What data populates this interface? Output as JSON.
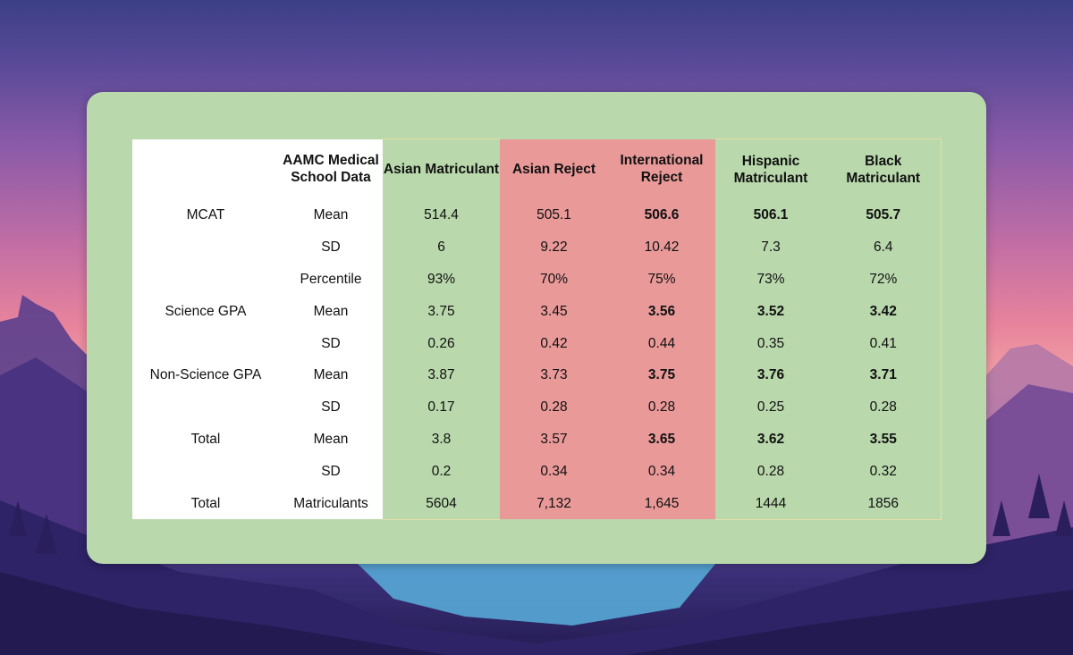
{
  "table": {
    "headers": [
      "",
      "AAMC Medical School Data",
      "Asian Matriculant",
      "Asian Reject",
      "International Reject",
      "Hispanic Matriculant",
      "Black Matriculant"
    ],
    "rows": [
      {
        "group": "MCAT",
        "stat": "Mean",
        "values": [
          "514.4",
          "505.1",
          "506.6",
          "506.1",
          "505.7"
        ]
      },
      {
        "group": "",
        "stat": "SD",
        "values": [
          "6",
          "9.22",
          "10.42",
          "7.3",
          "6.4"
        ]
      },
      {
        "group": "",
        "stat": "Percentile",
        "values": [
          "93%",
          "70%",
          "75%",
          "73%",
          "72%"
        ]
      },
      {
        "group": "Science GPA",
        "stat": "Mean",
        "values": [
          "3.75",
          "3.45",
          "3.56",
          "3.52",
          "3.42"
        ]
      },
      {
        "group": "",
        "stat": "SD",
        "values": [
          "0.26",
          "0.42",
          "0.44",
          "0.35",
          "0.41"
        ]
      },
      {
        "group": "Non-Science GPA",
        "stat": "Mean",
        "values": [
          "3.87",
          "3.73",
          "3.75",
          "3.76",
          "3.71"
        ]
      },
      {
        "group": "",
        "stat": "SD",
        "values": [
          "0.17",
          "0.28",
          "0.28",
          "0.25",
          "0.28"
        ]
      },
      {
        "group": "Total",
        "stat": "Mean",
        "values": [
          "3.8",
          "3.57",
          "3.65",
          "3.62",
          "3.55"
        ]
      },
      {
        "group": "",
        "stat": "SD",
        "values": [
          "0.2",
          "0.34",
          "0.34",
          "0.28",
          "0.32"
        ]
      },
      {
        "group": "Total",
        "stat": "Matriculants",
        "values": [
          "5604",
          "7,132",
          "1,645",
          "1444",
          "1856"
        ]
      }
    ]
  },
  "colors": {
    "card": "#b9d8ac",
    "label_columns": "#ffffff",
    "highlight_columns": "#ea9999"
  }
}
